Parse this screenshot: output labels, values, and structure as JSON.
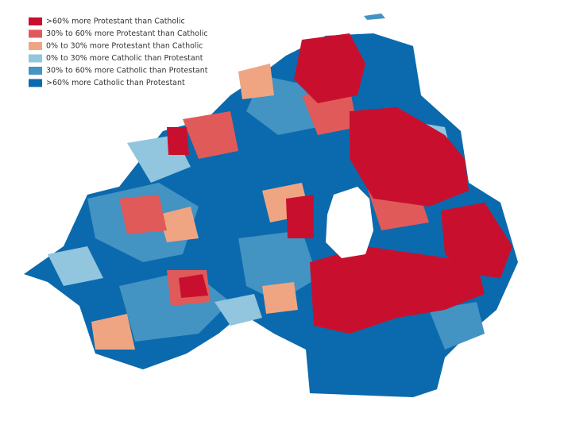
{
  "legend": {
    "items": [
      {
        "label": ">60% more Protestant than Catholic",
        "color": "#c8102e"
      },
      {
        "label": "30% to 60% more Protestant than Catholic",
        "color": "#e05a5a"
      },
      {
        "label": "0% to 30% more Protestant than Catholic",
        "color": "#f0a582"
      },
      {
        "label": "0% to 30% more Catholic than Protestant",
        "color": "#92c5de"
      },
      {
        "label": "30% to 60% more Catholic than Protestant",
        "color": "#4393c3"
      },
      {
        "label": ">60% more Catholic than Protestant",
        "color": "#0a6aad"
      }
    ]
  }
}
